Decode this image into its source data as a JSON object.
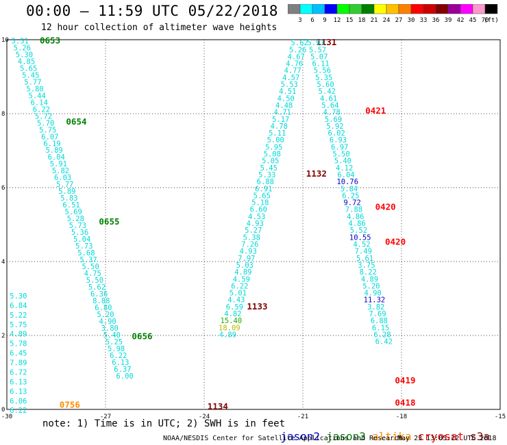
{
  "title": "00:00 – 11:59 UTC 05/22/2018",
  "subtitle": "12 hour collection of altimeter wave heights",
  "colorbar": {
    "unit": "(ft)",
    "labels": [
      "3",
      "6",
      "9",
      "12",
      "15",
      "18",
      "21",
      "24",
      "27",
      "30",
      "33",
      "36",
      "39",
      "42",
      "45",
      "70"
    ],
    "colors": [
      "#7f7f7f",
      "#00ffff",
      "#00bfff",
      "#0000ff",
      "#00ff00",
      "#32cd32",
      "#008000",
      "#ffff00",
      "#ffc000",
      "#ff8000",
      "#ff0000",
      "#cc0000",
      "#800000",
      "#990099",
      "#ff00ff",
      "#ff99cc",
      "#000000"
    ]
  },
  "chart_data": {
    "type": "scatter",
    "title": "00:00 – 11:59 UTC 05/22/2018",
    "subtitle": "12 hour collection of altimeter wave heights",
    "xlim": [
      -30,
      -15
    ],
    "ylim": [
      0,
      10
    ],
    "x_ticks": [
      "-30",
      "-27",
      "-24",
      "-21",
      "-18",
      "-15"
    ],
    "y_ticks": [
      "0",
      "2",
      "4",
      "6",
      "8",
      "10"
    ],
    "grid": true,
    "annotations_color_key": {
      "cyan": "#00d8d8",
      "blue": "#0000cc",
      "green_light": "#22aa00",
      "yellow": "#b8b800",
      "darkred": "#800000",
      "red": "#ff0000",
      "green": "#008000",
      "orange": "#ff8c00"
    },
    "tracks": [
      {
        "satellite": "jason3",
        "x_start": -29.6,
        "y_start": 9.9,
        "x_step": 0.065,
        "y_step": -0.185,
        "values": [
          "5.51",
          "5.26",
          "5.30",
          "4.85",
          "5.65",
          "5.45",
          "5.77",
          "5.80",
          "5.44",
          "6.14",
          "6.22",
          "5.72",
          "5.70",
          "5.75",
          "6.07",
          "6.19",
          "5.89",
          "6.04",
          "5.91",
          "5.82",
          "6.03",
          "5.77",
          "5.89",
          "5.83",
          "6.51",
          "5.69",
          "5.28",
          "5.73",
          "5.36",
          "5.04",
          "5.73",
          "5.68",
          "5.37",
          "5.50",
          "4.75",
          "5.50",
          "5.62",
          "6.36",
          "8.88",
          "6.80",
          "5.20",
          "4.90",
          "3.80",
          "5.40",
          "5.25",
          "5.98",
          "6.22",
          "6.13",
          "6.37",
          "6.00"
        ],
        "times": [
          {
            "label": "0653",
            "x": -29.0,
            "y": 9.9
          },
          {
            "label": "0654",
            "x": -28.2,
            "y": 7.7
          },
          {
            "label": "0655",
            "x": -27.2,
            "y": 5.0
          },
          {
            "label": "0656",
            "x": -26.2,
            "y": 1.9
          }
        ]
      },
      {
        "satellite": "jason3",
        "x_start": -29.65,
        "y_start": 3.0,
        "x_step": 0.0,
        "y_step": -0.258,
        "values": [
          "5.30",
          "6.84",
          "5.22",
          "5.75",
          "4.89",
          "5.78",
          "6.45",
          "7.89",
          "6.72",
          "6.13",
          "6.13",
          "6.06",
          "6.22"
        ],
        "times": [
          {
            "label": "0756",
            "x": -28.4,
            "y": 0.05,
            "color": "orange"
          }
        ]
      },
      {
        "satellite": "cryosat",
        "x_start": -21.1,
        "y_start": 9.85,
        "x_step": -0.052,
        "y_step": -0.188,
        "values": [
          "5.62",
          "5.26",
          "4.67",
          "4.76",
          "4.77",
          "4.57",
          "5.53",
          "4.51",
          "4.50",
          "4.48",
          "4.71",
          "5.17",
          "4.78",
          "5.11",
          "5.00",
          "5.95",
          "5.08",
          "5.05",
          "5.45",
          "5.33",
          "6.88",
          "6.91",
          "5.65",
          "5.18",
          "6.60",
          "4.53",
          "4.93",
          "5.27",
          "5.38",
          "7.26",
          "4.93",
          "7.97",
          "5.03",
          "4.89",
          "4.59",
          "6.22",
          "5.01",
          "4.43",
          "6.59",
          "4.82",
          "15.40",
          "18.09",
          "4.89"
        ],
        "times": [
          {
            "label": "1131",
            "x": -20.6,
            "y": 9.85,
            "color": "darkred"
          },
          {
            "label": "1132",
            "x": -20.9,
            "y": 6.3,
            "color": "darkred"
          },
          {
            "label": "1133",
            "x": -22.7,
            "y": 2.7,
            "color": "darkred"
          },
          {
            "label": "1134",
            "x": -23.9,
            "y": 0.0,
            "color": "darkred"
          }
        ]
      },
      {
        "satellite": "cryosat",
        "x_start": -20.6,
        "y_start": 9.85,
        "x_step": 0.048,
        "y_step": -0.188,
        "values": [
          "5.91",
          "5.57",
          "5.07",
          "6.11",
          "5.56",
          "5.35",
          "5.60",
          "5.42",
          "4.61",
          "5.64",
          "4.78",
          "5.69",
          "5.92",
          "6.02",
          "6.93",
          "6.97",
          "5.50",
          "5.40",
          "4.12",
          "6.04",
          "10.76",
          "5.84",
          "6.25",
          "9.72",
          "7.88",
          "4.86",
          "4.86",
          "5.52",
          "10.55",
          "4.52",
          "7.49",
          "5.61",
          "3.75",
          "8.22",
          "4.89",
          "5.20",
          "4.90",
          "11.32",
          "3.82",
          "7.69",
          "6.88",
          "6.15",
          "6.28",
          "6.42"
        ],
        "times": [
          {
            "label": "0421",
            "x": -19.1,
            "y": 8.0,
            "color": "red"
          },
          {
            "label": "0420",
            "x": -18.8,
            "y": 5.4,
            "color": "red"
          },
          {
            "label": "0420",
            "x": -18.5,
            "y": 4.45,
            "color": "red"
          },
          {
            "label": "0419",
            "x": -18.2,
            "y": 0.7,
            "color": "red"
          },
          {
            "label": "0418",
            "x": -18.2,
            "y": 0.1,
            "color": "red"
          }
        ]
      }
    ]
  },
  "note": "note: 1) Time is in UTC; 2) SWH is in feet",
  "legend": [
    {
      "name": "jason2",
      "color": "#0000cc"
    },
    {
      "name": "jason3",
      "color": "#008000"
    },
    {
      "name": "altika",
      "color": "#ff8c00"
    },
    {
      "name": "cryosat",
      "color": "#ff0000"
    },
    {
      "name": "s3a",
      "color": "#800000"
    }
  ],
  "credit": "NOAA/NESDIS Center for Satellite Applications and Research",
  "stamp": "May 23 13:05:22 UTC 2018"
}
